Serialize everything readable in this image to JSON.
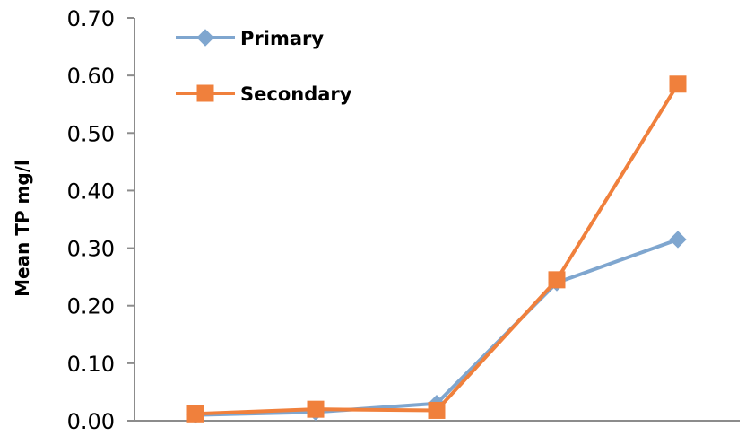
{
  "chart_data": {
    "type": "line",
    "title": "",
    "xlabel": "",
    "ylabel": "Mean TP mg/l",
    "ylim": [
      0,
      0.7
    ],
    "y_ticks": [
      "0.00",
      "0.10",
      "0.20",
      "0.30",
      "0.40",
      "0.50",
      "0.60",
      "0.70"
    ],
    "x": [
      1,
      2,
      3,
      4,
      5
    ],
    "grid": false,
    "legend_position": "top-left",
    "series": [
      {
        "name": "Primary",
        "values": [
          0.01,
          0.015,
          0.03,
          0.24,
          0.315
        ],
        "color": "#7fa6cf",
        "marker": "diamond"
      },
      {
        "name": "Secondary",
        "values": [
          0.012,
          0.02,
          0.018,
          0.245,
          0.585
        ],
        "color": "#f0803c",
        "marker": "square"
      }
    ]
  }
}
